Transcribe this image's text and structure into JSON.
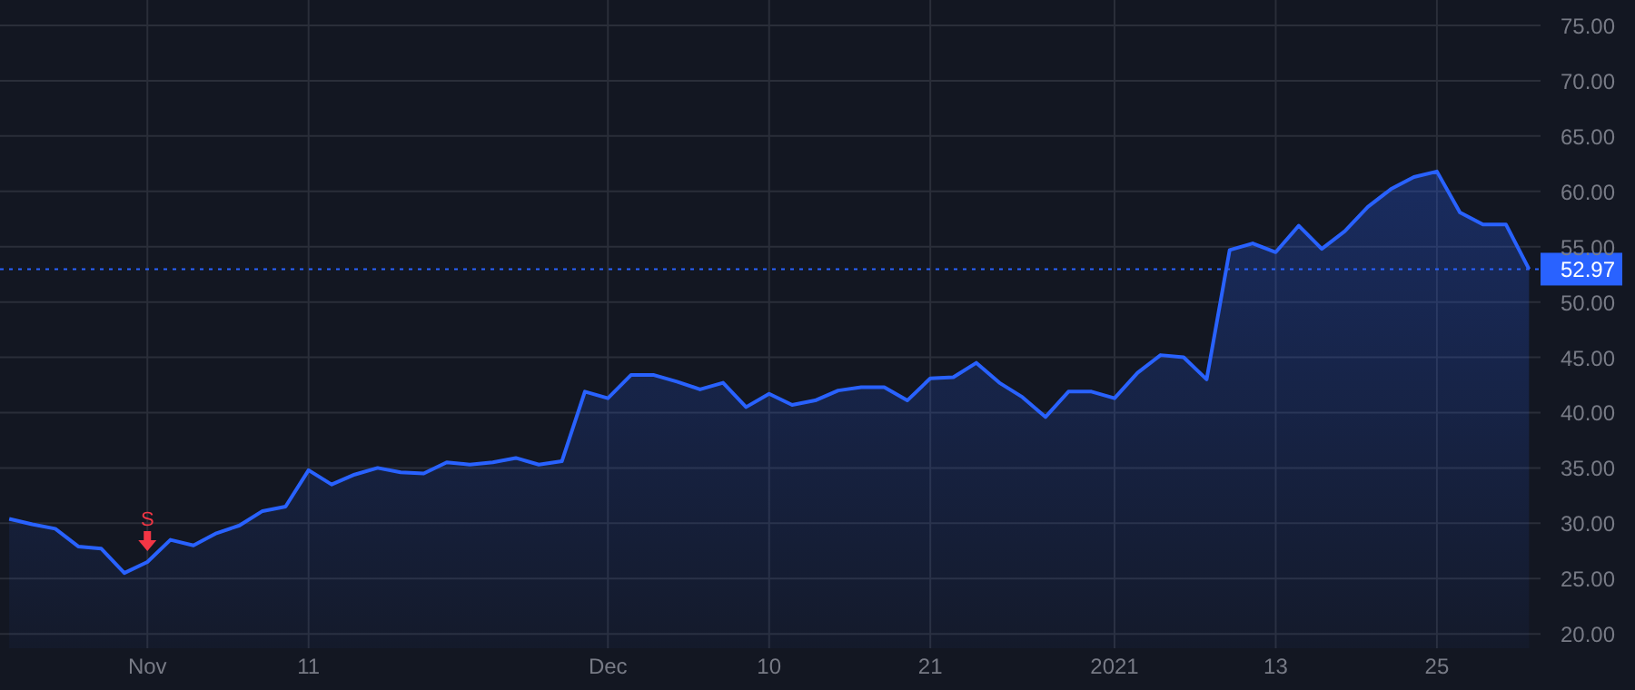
{
  "chart_data": {
    "type": "area",
    "categories": [
      null,
      null,
      null,
      null,
      null,
      null,
      "Nov",
      null,
      null,
      null,
      null,
      null,
      null,
      "11",
      null,
      null,
      null,
      null,
      null,
      null,
      null,
      null,
      null,
      null,
      null,
      null,
      "Dec",
      null,
      null,
      null,
      null,
      null,
      null,
      "10",
      null,
      null,
      null,
      null,
      null,
      null,
      "21",
      null,
      null,
      null,
      null,
      null,
      null,
      null,
      "2021",
      null,
      null,
      null,
      null,
      null,
      null,
      "13",
      null,
      null,
      null,
      null,
      null,
      null,
      "25",
      null,
      null,
      null,
      null
    ],
    "series": [
      {
        "color": "#2962ff",
        "values": [
          30.4,
          29.9,
          29.5,
          27.9,
          27.7,
          25.5,
          26.5,
          28.5,
          28.0,
          29.1,
          29.8,
          31.1,
          31.5,
          34.8,
          33.5,
          34.4,
          35.0,
          34.6,
          34.5,
          35.5,
          35.3,
          35.5,
          35.9,
          35.3,
          35.6,
          41.9,
          41.3,
          43.4,
          43.4,
          42.8,
          42.1,
          42.7,
          40.5,
          41.7,
          40.7,
          41.1,
          42.0,
          42.3,
          42.3,
          41.1,
          43.1,
          43.2,
          44.5,
          42.7,
          41.4,
          39.6,
          41.9,
          41.9,
          41.3,
          43.6,
          45.2,
          45.0,
          43.0,
          54.7,
          55.3,
          54.5,
          56.9,
          54.8,
          56.4,
          58.6,
          60.2,
          61.3,
          61.8,
          58.1,
          57.0,
          57.0,
          52.97
        ]
      }
    ],
    "ylim": [
      18.7,
      77.3
    ],
    "yticks": [
      {
        "value": 20,
        "label": "20.00"
      },
      {
        "value": 25,
        "label": "25.00"
      },
      {
        "value": 30,
        "label": "30.00"
      },
      {
        "value": 35,
        "label": "35.00"
      },
      {
        "value": 40,
        "label": "40.00"
      },
      {
        "value": 45,
        "label": "45.00"
      },
      {
        "value": 50,
        "label": "50.00"
      },
      {
        "value": 55,
        "label": "55.00"
      },
      {
        "value": 60,
        "label": "60.00"
      },
      {
        "value": 65,
        "label": "65.00"
      },
      {
        "value": 70,
        "label": "70.00"
      },
      {
        "value": 75,
        "label": "75.00"
      }
    ],
    "grid": true,
    "line_style": "solid",
    "ref_lines": [
      {
        "axis": "y",
        "value": 52.97,
        "label": "52.97",
        "color": "#2962ff",
        "line_style": "dotted"
      }
    ],
    "annotations": [
      {
        "text": "S",
        "x": "Nov",
        "y": 26.5
      }
    ]
  }
}
